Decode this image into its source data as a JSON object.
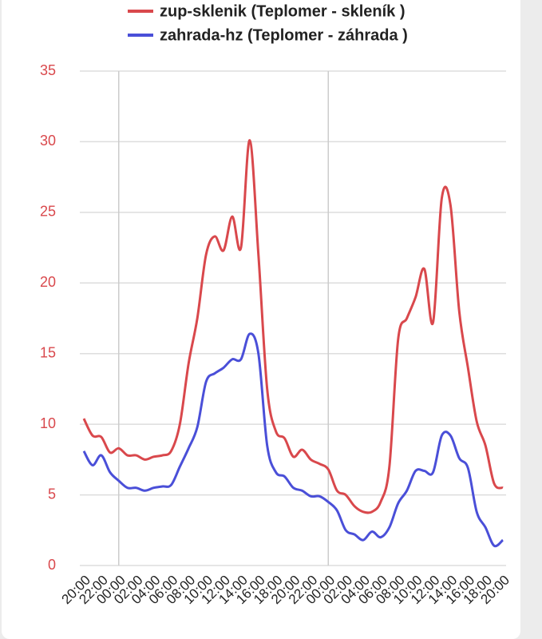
{
  "chart_data": {
    "type": "line",
    "categories": [
      "20:00",
      null,
      "22:00",
      null,
      "00:00",
      null,
      "02:00",
      null,
      "04:00",
      null,
      "06:00",
      null,
      "08:00",
      null,
      "10:00",
      null,
      "12:00",
      null,
      "14:00",
      null,
      "16:00",
      null,
      "18:00",
      null,
      "20:00",
      null,
      "22:00",
      null,
      "00:00",
      null,
      "02:00",
      null,
      "04:00",
      null,
      "06:00",
      null,
      "08:00",
      null,
      "10:00",
      null,
      "12:00",
      null,
      "14:00",
      null,
      "16:00",
      null,
      "18:00",
      null,
      "20:00"
    ],
    "series": [
      {
        "name": "zup-sklenik (Teplomer - skleník )",
        "color": "#d9484c",
        "values": [
          10.4,
          9.2,
          9.1,
          8.0,
          8.3,
          7.8,
          7.8,
          7.5,
          7.7,
          7.8,
          8.1,
          10.0,
          14.3,
          17.5,
          22.0,
          23.3,
          22.3,
          24.7,
          22.5,
          30.1,
          22.0,
          12.5,
          9.5,
          9.0,
          7.7,
          8.2,
          7.5,
          7.2,
          6.8,
          5.3,
          5.0,
          4.2,
          3.8,
          3.8,
          4.5,
          7.0,
          16.0,
          17.5,
          19.0,
          21.0,
          17.2,
          26.0,
          25.5,
          18.0,
          14.0,
          10.2,
          8.5,
          5.8,
          5.5
        ]
      },
      {
        "name": "zahrada-hz (Teplomer - záhrada )",
        "color": "#4a4fd8",
        "values": [
          8.1,
          7.1,
          7.8,
          6.6,
          6.0,
          5.5,
          5.5,
          5.3,
          5.5,
          5.6,
          5.7,
          7.0,
          8.3,
          9.8,
          13.0,
          13.6,
          14.0,
          14.6,
          14.6,
          16.4,
          15.0,
          8.5,
          6.6,
          6.3,
          5.5,
          5.3,
          4.9,
          4.9,
          4.5,
          3.9,
          2.5,
          2.2,
          1.8,
          2.4,
          2.0,
          2.7,
          4.4,
          5.3,
          6.7,
          6.7,
          6.6,
          9.2,
          9.2,
          7.6,
          6.9,
          3.8,
          2.7,
          1.4,
          1.8
        ]
      }
    ],
    "ylim": [
      0,
      35
    ],
    "yticks": [
      0,
      5,
      10,
      15,
      20,
      25,
      30,
      35
    ],
    "ytick_color": "#d9484c",
    "grid": true,
    "x_gridlines": [
      4,
      28
    ],
    "legend": "top"
  }
}
